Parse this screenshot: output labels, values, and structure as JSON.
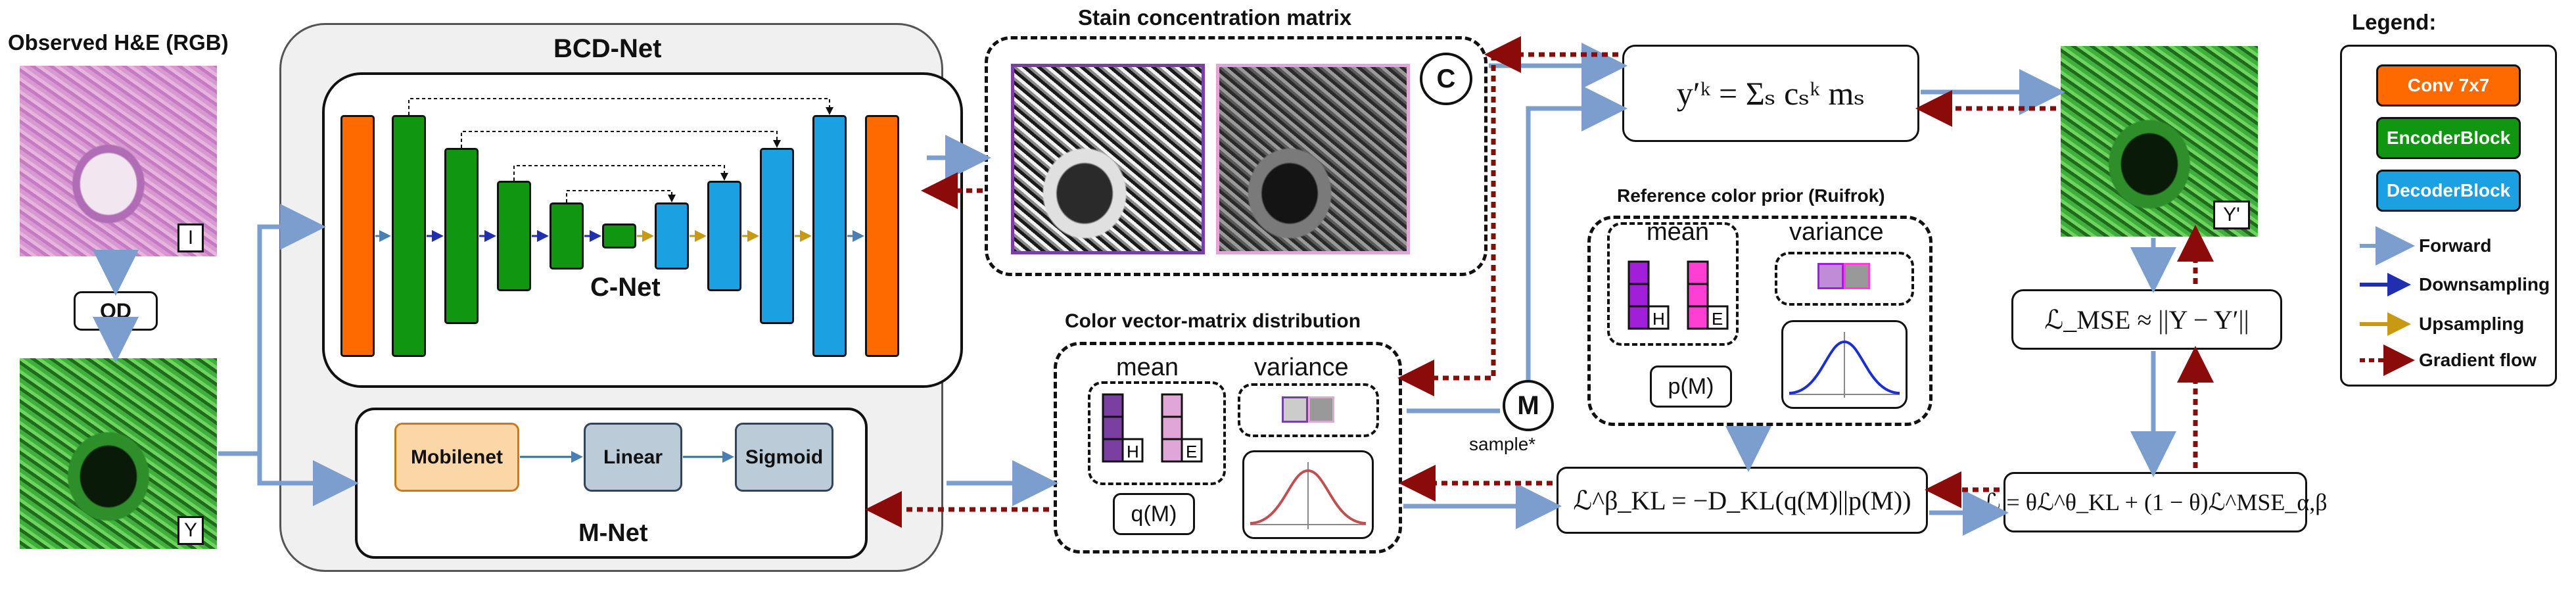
{
  "input": {
    "observed_title": "Observed H&E (RGB)",
    "he_tag": "I",
    "od_label": "OD",
    "od_tag": "Y"
  },
  "bcdnet": {
    "title": "BCD-Net",
    "cnet_label": "C-Net",
    "mnet_label": "M-Net",
    "mnet_nodes": [
      "Mobilenet",
      "Linear",
      "Sigmoid"
    ]
  },
  "stain": {
    "title": "Stain concentration matrix",
    "c_symbol": "C"
  },
  "equations": {
    "y_reconstruction": "y′ᵏ = Σₛ cₛᵏ mₛ",
    "mse": "ℒ_MSE ≈ ||Y − Y′||",
    "kl": "ℒ^β_KL = −D_KL(q(M)||p(M))",
    "total": "ℒ = θℒ^θ_KL + (1 − θ)ℒ^MSE_α,β"
  },
  "output": {
    "tag": "Y'"
  },
  "prior": {
    "title": "Reference color prior (Ruifrok)",
    "mean_label": "mean",
    "variance_label": "variance",
    "dist_label": "p(M)",
    "h_label": "H",
    "e_label": "E"
  },
  "posterior": {
    "title": "Color vector-matrix distribution",
    "mean_label": "mean",
    "variance_label": "variance",
    "dist_label": "q(M)",
    "h_label": "H",
    "e_label": "E"
  },
  "sample": {
    "m_symbol": "M",
    "label": "sample*"
  },
  "legend": {
    "title": "Legend:",
    "blocks": [
      "Conv 7x7",
      "EncoderBlock",
      "DecoderBlock"
    ],
    "arrows": [
      "Forward",
      "Downsampling",
      "Upsampling",
      "Gradient flow"
    ],
    "colors": {
      "conv": "#ff6a00",
      "encoder": "#119611",
      "decoder": "#1ba1e2",
      "forward": "#7b9ecf",
      "downsampling": "#1f2fb0",
      "upsampling": "#c89a14",
      "gradient": "#8b0a0a",
      "prior_mean": "#a11fd8",
      "prior_mean_e": "#ff3fd4",
      "posterior_mean": "#7a3fa0",
      "posterior_mean_e": "#e0a6d8",
      "prior_curve": "#1a2fd0",
      "posterior_curve": "#c05050"
    }
  }
}
